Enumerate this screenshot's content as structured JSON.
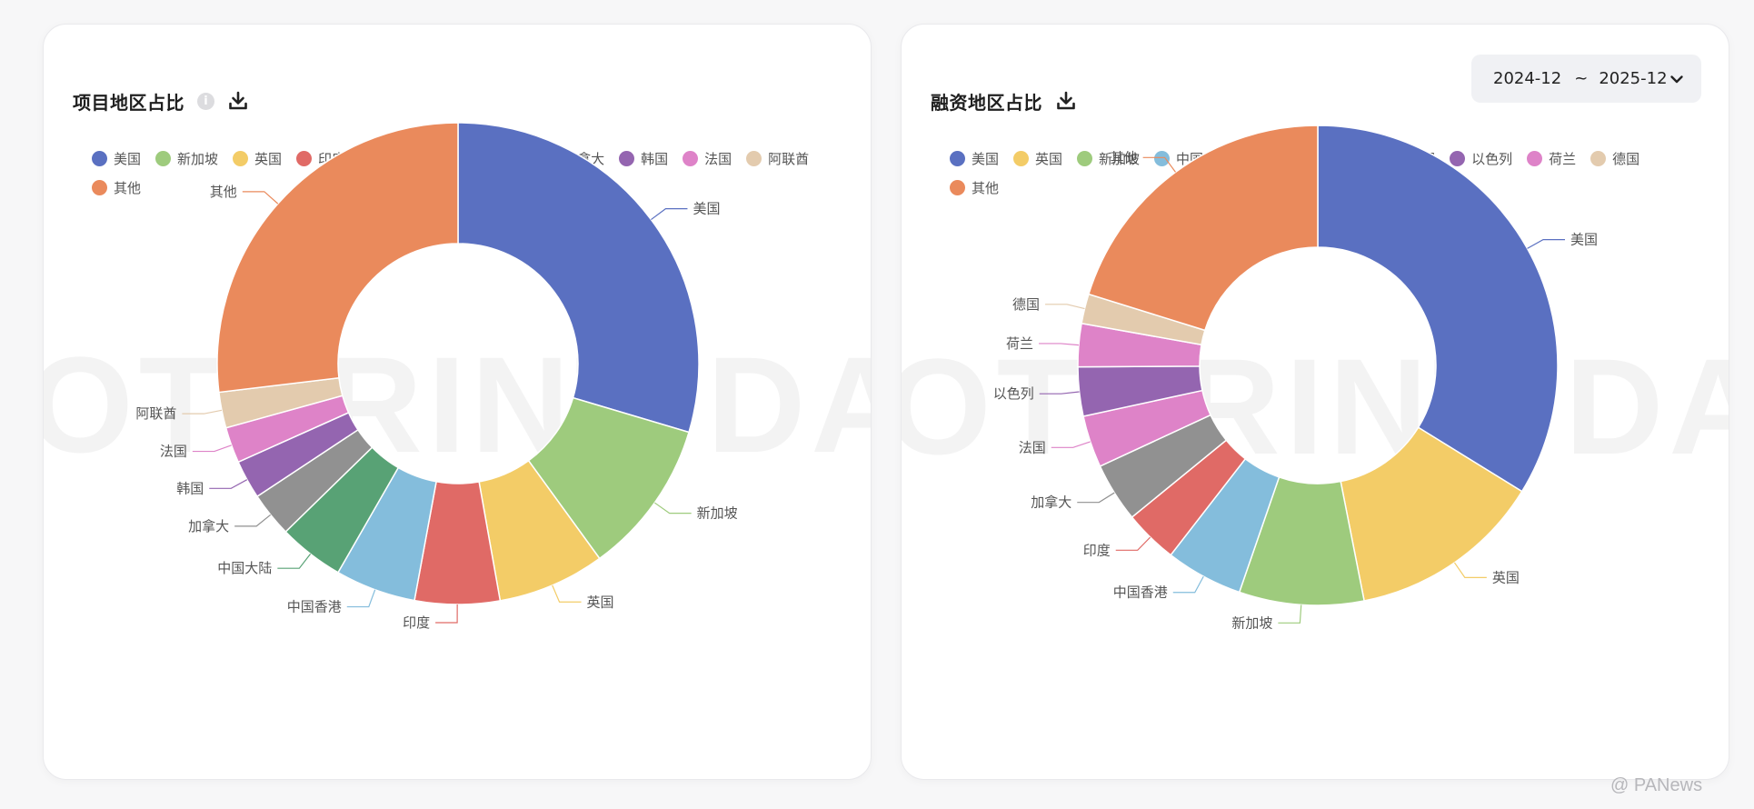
{
  "colors": {
    "美国": "#5a70c1",
    "新加坡": "#9ecb7d",
    "英国": "#f3cc67",
    "印度": "#e06a66",
    "中国香港": "#84bddc",
    "中国大陆": "#58a275",
    "加拿大": "#919191",
    "韩国": "#9465b0",
    "法国": "#de83c8",
    "阿联酋": "#e3cbae",
    "其他": "#ea8a5c",
    "以色列": "#9465b0",
    "荷兰": "#de83c8",
    "德国": "#e3cbae"
  },
  "left": {
    "title": "项目地区占比",
    "info_icon": "info-icon",
    "download_icon": "download-icon"
  },
  "right": {
    "title": "融资地区占比",
    "download_icon": "download-icon",
    "date_from": "2024-12",
    "date_sep": "~",
    "date_to": "2025-12",
    "chevron_icon": "chevron-down-icon"
  },
  "watermark": "FOOTPRINT DATA",
  "footer_watermark": "@ PANews",
  "chart_data": [
    {
      "type": "pie",
      "variant": "donut",
      "title": "项目地区占比",
      "legend_position": "top-left",
      "slices": [
        {
          "name": "美国",
          "value": 29.6
        },
        {
          "name": "新加坡",
          "value": 10.4
        },
        {
          "name": "英国",
          "value": 7.2
        },
        {
          "name": "印度",
          "value": 5.7
        },
        {
          "name": "中国香港",
          "value": 5.4
        },
        {
          "name": "中国大陆",
          "value": 4.4
        },
        {
          "name": "加拿大",
          "value": 3.0
        },
        {
          "name": "韩国",
          "value": 2.6
        },
        {
          "name": "法国",
          "value": 2.4
        },
        {
          "name": "阿联酋",
          "value": 2.4
        },
        {
          "name": "其他",
          "value": 26.9
        }
      ]
    },
    {
      "type": "pie",
      "variant": "donut",
      "title": "融资地区占比",
      "legend_position": "top-left",
      "slices": [
        {
          "name": "美国",
          "value": 33.8
        },
        {
          "name": "英国",
          "value": 13.1
        },
        {
          "name": "新加坡",
          "value": 8.4
        },
        {
          "name": "中国香港",
          "value": 5.2
        },
        {
          "name": "印度",
          "value": 3.6
        },
        {
          "name": "加拿大",
          "value": 4.0
        },
        {
          "name": "法国",
          "value": 3.5
        },
        {
          "name": "以色列",
          "value": 3.3
        },
        {
          "name": "荷兰",
          "value": 2.9
        },
        {
          "name": "德国",
          "value": 2.0
        },
        {
          "name": "其他",
          "value": 20.2
        }
      ]
    }
  ]
}
